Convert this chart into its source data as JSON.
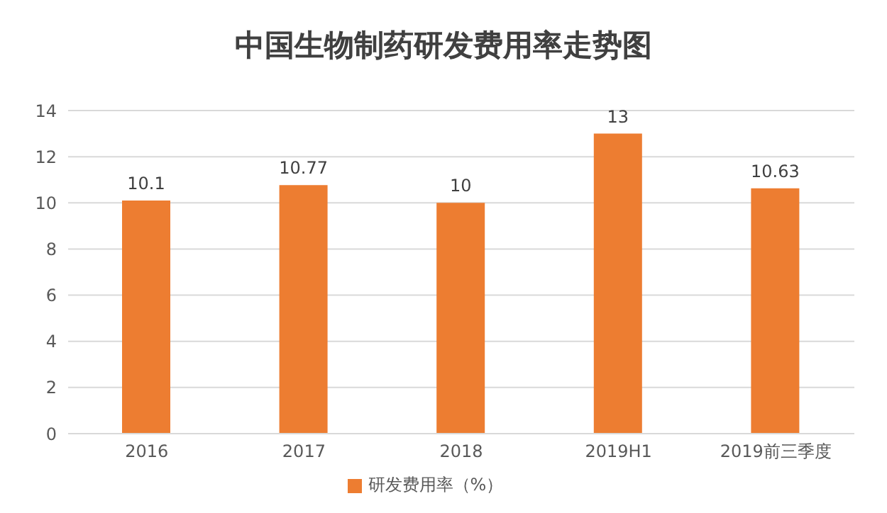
{
  "chart_data": {
    "type": "bar",
    "title": "中国生物制药研发费用率走势图",
    "categories": [
      "2016",
      "2017",
      "2018",
      "2019H1",
      "2019前三季度"
    ],
    "series": [
      {
        "name": "研发费用率（%）",
        "color": "#ed7d31",
        "values": [
          10.1,
          10.77,
          10,
          13,
          10.63
        ]
      }
    ],
    "ylim": [
      0,
      14
    ],
    "yticks": [
      0,
      2,
      4,
      6,
      8,
      10,
      12,
      14
    ],
    "grid": "y",
    "legend": "bottom",
    "data_labels": true
  }
}
